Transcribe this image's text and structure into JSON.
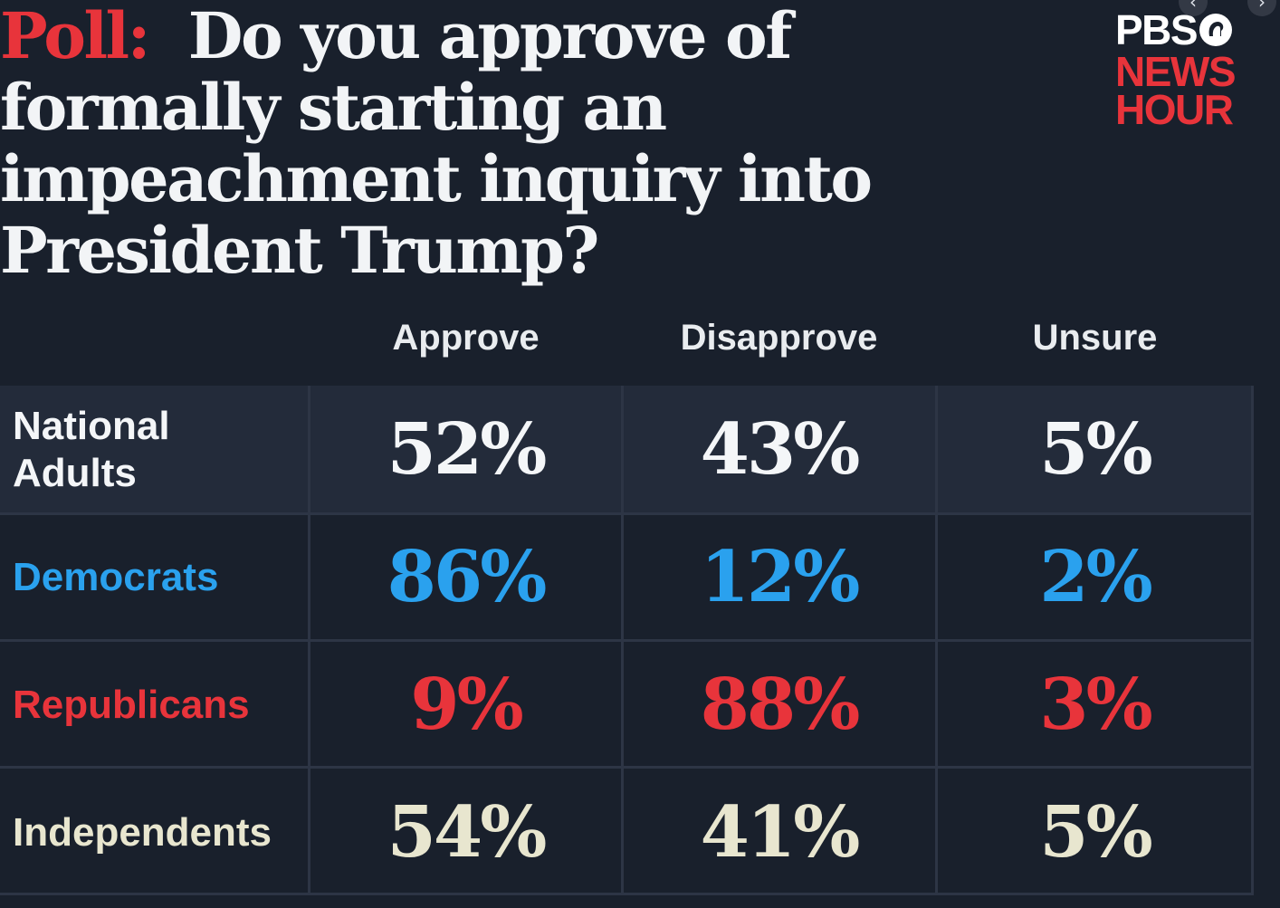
{
  "title": {
    "kicker": "Poll:",
    "question": "Do you approve of formally starting an impeachment inquiry into President Trump?"
  },
  "logo": {
    "line1": "PBS",
    "line2": "NEWS",
    "line3": "HOUR",
    "mark_icon": "pbs-head-icon"
  },
  "nav": {
    "prev_icon": "chevron-left-icon",
    "next_icon": "chevron-right-icon",
    "prev_glyph": "‹",
    "next_glyph": "›"
  },
  "colors": {
    "background": "#19202c",
    "header_row": "#232b3a",
    "title_text": "#f2f4f6",
    "accent_red": "#e8343b",
    "democrat_blue": "#2aa1ee",
    "republican_red": "#e8343b",
    "national_white": "#f4f6f8",
    "independent_cream": "#e8e6cf"
  },
  "chart_data": {
    "type": "table",
    "columns": [
      "Approve",
      "Disapprove",
      "Unsure"
    ],
    "rows": [
      {
        "label": "National\nAdults",
        "values": [
          "52%",
          "43%",
          "5%"
        ],
        "color": "#f4f6f8"
      },
      {
        "label": "Democrats",
        "values": [
          "86%",
          "12%",
          "2%"
        ],
        "color": "#2aa1ee"
      },
      {
        "label": "Republicans",
        "values": [
          "9%",
          "88%",
          "3%"
        ],
        "color": "#e8343b"
      },
      {
        "label": "Independents",
        "values": [
          "54%",
          "41%",
          "5%"
        ],
        "color": "#e8e6cf"
      }
    ]
  }
}
